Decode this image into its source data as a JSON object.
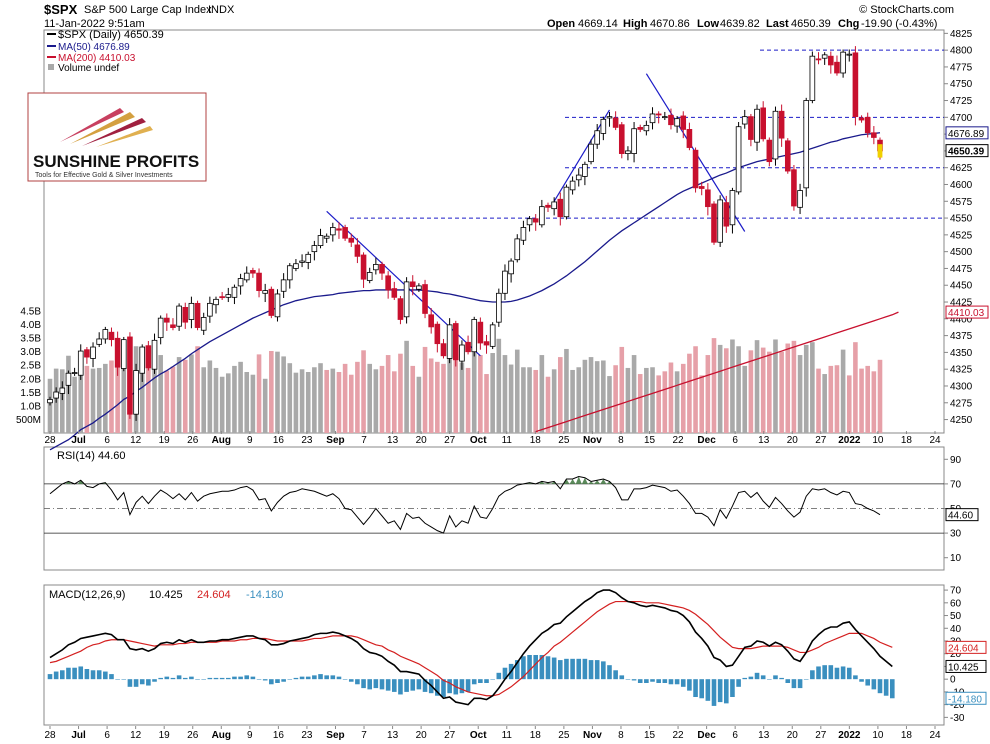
{
  "header": {
    "symbol": "$SPX",
    "name": "S&P 500 Large Cap Index",
    "exchange": "INDX",
    "date_time": "11-Jan-2022 9:51am",
    "source": "© StockCharts.com",
    "open_label": "Open",
    "open": "4669.14",
    "high_label": "High",
    "high": "4670.86",
    "low_label": "Low",
    "low": "4639.82",
    "last_label": "Last",
    "last": "4650.39",
    "chg_label": "Chg",
    "chg": "-19.90 (-0.43%)"
  },
  "legend": {
    "price": "$SPX (Daily) 4650.39",
    "ma50": "MA(50) 4676.89",
    "ma200": "MA(200) 4410.03",
    "volume": "Volume undef"
  },
  "logo": {
    "name": "SUNSHINE PROFITS",
    "tagline": "Tools for Effective Gold & Silver Investments"
  },
  "colors": {
    "up": "#ffffff",
    "down": "#c8102e",
    "candle_outline": "#000000",
    "ma50": "#1a1a8c",
    "ma200": "#c8102e",
    "volume_up": "#a9a9a9",
    "volume_down": "#e6a0a8",
    "trend": "#1c1cc8",
    "rsi_fill": "#5a8a5a",
    "macd_line": "#000000",
    "macd_signal": "#d42020",
    "macd_hist": "#3a8fbf",
    "last_marker": "#f0d000"
  },
  "chart_data": [
    {
      "type": "candlestick",
      "title": "$SPX S&P 500 Large Cap Index",
      "y_axis": {
        "ticks": [
          4250,
          4275,
          4300,
          4325,
          4350,
          4375,
          4400,
          4425,
          4450,
          4475,
          4500,
          4525,
          4550,
          4575,
          4600,
          4625,
          4650,
          4675,
          4700,
          4725,
          4750,
          4775,
          4800,
          4825
        ],
        "range": [
          4230,
          4830
        ],
        "markers": [
          {
            "label": "4676.89",
            "value": 4676.89
          },
          {
            "label": "4650.39",
            "value": 4650.39
          },
          {
            "label": "4410.03",
            "value": 4410.03
          }
        ]
      },
      "x_axis": {
        "labels": [
          "28",
          "Jul",
          "6",
          "12",
          "19",
          "26",
          "Aug",
          "9",
          "16",
          "23",
          "Sep",
          "7",
          "13",
          "20",
          "27",
          "Oct",
          "11",
          "18",
          "25",
          "Nov",
          "8",
          "15",
          "22",
          "Dec",
          "6",
          "13",
          "20",
          "27",
          "2022",
          "10",
          "18",
          "24"
        ],
        "bold_labels": [
          "Jul",
          "Aug",
          "Sep",
          "Oct",
          "Nov",
          "Dec",
          "2022"
        ]
      },
      "close": [
        4280,
        4291,
        4297,
        4319,
        4320,
        4352,
        4343,
        4358,
        4370,
        4384,
        4369,
        4328,
        4369,
        4258,
        4323,
        4358,
        4327,
        4368,
        4401,
        4395,
        4387,
        4419,
        4395,
        4423,
        4387,
        4402,
        4423,
        4429,
        4432,
        4436,
        4447,
        4460,
        4468,
        4468,
        4442,
        4442,
        4405,
        4437,
        4458,
        4479,
        4482,
        4486,
        4496,
        4509,
        4524,
        4523,
        4536,
        4532,
        4520,
        4514,
        4493,
        4459,
        4469,
        4481,
        4468,
        4443,
        4432,
        4399,
        4455,
        4448,
        4449,
        4408,
        4388,
        4363,
        4345,
        4391,
        4339,
        4361,
        4351,
        4399,
        4364,
        4361,
        4391,
        4438,
        4471,
        4486,
        4519,
        4536,
        4549,
        4544,
        4567,
        4566,
        4574,
        4552,
        4596,
        4605,
        4614,
        4630,
        4660,
        4680,
        4697,
        4701,
        4685,
        4646,
        4650,
        4683,
        4682,
        4688,
        4705,
        4704,
        4701,
        4689,
        4698,
        4682,
        4655,
        4595,
        4594,
        4567,
        4514,
        4577,
        4538,
        4591,
        4686,
        4701,
        4667,
        4712,
        4668,
        4634,
        4709,
        4669,
        4620,
        4568,
        4591,
        4725,
        4791,
        4786,
        4793,
        4778,
        4766,
        4797,
        4794,
        4701,
        4696,
        4677,
        4670,
        4650
      ],
      "ma50": [
        4205,
        4210,
        4215,
        4220,
        4227,
        4235,
        4240,
        4245,
        4252,
        4258,
        4265,
        4272,
        4280,
        4285,
        4292,
        4298,
        4305,
        4312,
        4318,
        4323,
        4329,
        4335,
        4341,
        4348,
        4354,
        4360,
        4366,
        4371,
        4376,
        4381,
        4386,
        4391,
        4396,
        4401,
        4405,
        4409,
        4413,
        4417,
        4421,
        4424,
        4427,
        4429,
        4431,
        4433,
        4434,
        4435,
        4436,
        4438,
        4439,
        4440,
        4441,
        4442,
        4442,
        4443,
        4443,
        4443,
        4443,
        4443,
        4443,
        4443,
        4443,
        4442,
        4441,
        4440,
        4438,
        4437,
        4435,
        4433,
        4431,
        4429,
        4427,
        4426,
        4425,
        4425,
        4425,
        4426,
        4428,
        4431,
        4434,
        4438,
        4442,
        4447,
        4452,
        4458,
        4464,
        4471,
        4478,
        4485,
        4493,
        4501,
        4509,
        4517,
        4524,
        4531,
        4537,
        4543,
        4549,
        4555,
        4561,
        4567,
        4573,
        4579,
        4585,
        4590,
        4594,
        4598,
        4602,
        4606,
        4610,
        4614,
        4617,
        4621,
        4625,
        4628,
        4631,
        4634,
        4636,
        4638,
        4640,
        4642,
        4644,
        4646,
        4648,
        4651,
        4654,
        4657,
        4660,
        4663,
        4665,
        4668,
        4670,
        4672,
        4674,
        4675,
        4676,
        4677
      ],
      "ma200": [
        null,
        null,
        null,
        null,
        null,
        null,
        null,
        null,
        null,
        null,
        null,
        null,
        null,
        null,
        null,
        null,
        null,
        null,
        null,
        null,
        null,
        null,
        null,
        null,
        null,
        null,
        null,
        null,
        null,
        null,
        null,
        null,
        null,
        null,
        null,
        null,
        null,
        null,
        null,
        null,
        null,
        null,
        null,
        null,
        null,
        null,
        null,
        null,
        null,
        null,
        null,
        null,
        null,
        null,
        null,
        null,
        null,
        null,
        null,
        null,
        null,
        null,
        null,
        null,
        null,
        null,
        null,
        null,
        null,
        null,
        null,
        null,
        null,
        null,
        null,
        null,
        null,
        null,
        null,
        4232,
        4235,
        4238,
        4241,
        4244,
        4247,
        4250,
        4253,
        4256,
        4259,
        4262,
        4265,
        4268,
        4271,
        4274,
        4277,
        4280,
        4283,
        4286,
        4289,
        4292,
        4295,
        4298,
        4301,
        4304,
        4307,
        4310,
        4313,
        4316,
        4319,
        4322,
        4325,
        4328,
        4331,
        4334,
        4337,
        4340,
        4343,
        4346,
        4349,
        4352,
        4355,
        4358,
        4361,
        4364,
        4367,
        4370,
        4373,
        4376,
        4379,
        4382,
        4385,
        4388,
        4391,
        4394,
        4397,
        4400,
        4403,
        4406,
        4410
      ],
      "horizontal_levels": [
        4800,
        4700,
        4625,
        4550
      ],
      "volume_axis_labels": [
        "4.5B",
        "4.0B",
        "3.5B",
        "3.0B",
        "2.5B",
        "2.0B",
        "1.5B",
        "1.0B",
        "500M"
      ],
      "volume_ticks_billions": [
        4.5,
        4.0,
        3.5,
        3.0,
        2.5,
        2.0,
        1.5,
        1.0,
        0.5
      ]
    },
    {
      "type": "line",
      "title": "RSI(14) 44.60",
      "y_ticks": [
        90,
        70,
        50,
        30,
        10
      ],
      "y_range": [
        0,
        100
      ],
      "current_label": "44.60",
      "values": [
        62,
        66,
        70,
        72,
        70,
        73,
        68,
        67,
        70,
        71,
        65,
        57,
        63,
        45,
        55,
        60,
        54,
        60,
        65,
        62,
        58,
        62,
        57,
        63,
        56,
        60,
        62,
        63,
        64,
        64,
        65,
        67,
        68,
        65,
        57,
        58,
        48,
        55,
        60,
        63,
        64,
        66,
        65,
        64,
        62,
        60,
        62,
        58,
        50,
        49,
        43,
        37,
        43,
        50,
        44,
        38,
        40,
        33,
        46,
        42,
        43,
        38,
        35,
        32,
        30,
        44,
        35,
        40,
        38,
        52,
        43,
        42,
        50,
        60,
        64,
        66,
        69,
        70,
        71,
        70,
        72,
        71,
        72,
        66,
        74,
        74,
        76,
        75,
        72,
        73,
        74,
        72,
        67,
        57,
        57,
        66,
        66,
        67,
        69,
        68,
        67,
        64,
        65,
        60,
        54,
        46,
        46,
        43,
        36,
        49,
        42,
        52,
        63,
        64,
        59,
        63,
        56,
        51,
        59,
        54,
        48,
        43,
        47,
        60,
        66,
        65,
        66,
        63,
        61,
        64,
        63,
        54,
        53,
        50,
        48,
        45
      ]
    },
    {
      "type": "line",
      "title": "MACD(12,26,9)",
      "legend": {
        "macd": "10.425",
        "signal": "24.604",
        "hist": "-14.180"
      },
      "y_ticks": [
        70,
        60,
        50,
        40,
        30,
        20,
        10,
        0,
        -10,
        -20,
        -30
      ],
      "y_range": [
        -36,
        74
      ],
      "current_labels": [
        "24.604",
        "10.425",
        "-14.180"
      ],
      "macd": [
        17,
        20,
        23,
        27,
        29,
        32,
        33,
        34,
        35,
        36,
        35,
        31,
        31,
        24,
        23,
        24,
        22,
        24,
        28,
        29,
        28,
        31,
        29,
        31,
        29,
        29,
        30,
        30,
        31,
        31,
        32,
        33,
        34,
        34,
        32,
        31,
        27,
        27,
        28,
        30,
        31,
        32,
        33,
        35,
        36,
        36,
        37,
        36,
        34,
        32,
        29,
        24,
        21,
        20,
        18,
        14,
        11,
        6,
        6,
        5,
        4,
        -1,
        -5,
        -10,
        -15,
        -14,
        -18,
        -19,
        -20,
        -15,
        -15,
        -16,
        -13,
        -7,
        0,
        6,
        13,
        20,
        26,
        31,
        36,
        39,
        43,
        44,
        49,
        53,
        57,
        61,
        64,
        68,
        70,
        70,
        68,
        64,
        61,
        60,
        58,
        57,
        58,
        57,
        56,
        54,
        53,
        50,
        45,
        37,
        32,
        26,
        17,
        15,
        10,
        11,
        18,
        25,
        26,
        30,
        29,
        26,
        29,
        27,
        22,
        16,
        14,
        21,
        30,
        35,
        39,
        41,
        41,
        44,
        45,
        39,
        34,
        29,
        24,
        18,
        14,
        10
      ],
      "signal": [
        13,
        14,
        16,
        18,
        20,
        22,
        25,
        27,
        28,
        30,
        31,
        31,
        31,
        30,
        29,
        28,
        27,
        26,
        27,
        27,
        27,
        28,
        28,
        29,
        29,
        29,
        29,
        29,
        30,
        30,
        30,
        31,
        31,
        32,
        32,
        32,
        31,
        30,
        30,
        30,
        30,
        30,
        31,
        32,
        32,
        33,
        34,
        34,
        34,
        34,
        33,
        31,
        29,
        27,
        26,
        23,
        21,
        18,
        16,
        14,
        12,
        9,
        6,
        3,
        -1,
        -3,
        -6,
        -8,
        -10,
        -11,
        -12,
        -13,
        -13,
        -12,
        -9,
        -6,
        -2,
        2,
        7,
        12,
        17,
        21,
        26,
        29,
        33,
        37,
        41,
        45,
        49,
        53,
        56,
        59,
        61,
        61,
        61,
        61,
        61,
        60,
        60,
        60,
        59,
        58,
        57,
        56,
        54,
        51,
        47,
        43,
        38,
        33,
        29,
        25,
        24,
        24,
        24,
        25,
        26,
        26,
        26,
        26,
        25,
        23,
        21,
        21,
        23,
        25,
        28,
        30,
        32,
        34,
        36,
        36,
        36,
        34,
        32,
        29,
        27,
        25
      ]
    }
  ]
}
